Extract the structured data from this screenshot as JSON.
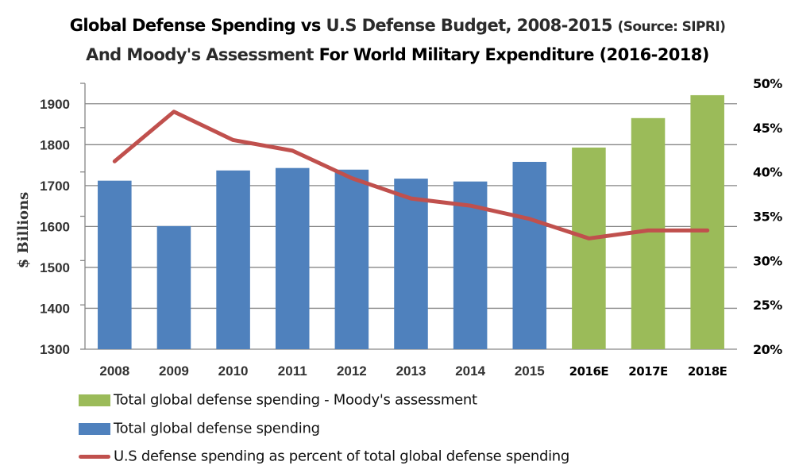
{
  "title": {
    "line1_part1": "Global Defense Spending vs",
    "line1_part2": "U.S Defense Budget, 2008-2015",
    "line1_part3": "(Source: SIPRI)",
    "line2_part1": "And Moody's Assessment",
    "line2_part2": "For World Military Expenditure (2016-2018)"
  },
  "colors": {
    "actual_bar": "#4F81BD",
    "forecast_bar": "#9BBB59",
    "line": "#C0504D",
    "grid": "#868686",
    "axis_text": "#333333"
  },
  "legend": [
    {
      "label": "Total global defense spending - Moody's assessment",
      "type": "box",
      "color": "#9BBB59"
    },
    {
      "label": "Total global defense spending",
      "type": "box",
      "color": "#4F81BD"
    },
    {
      "label": "U.S defense spending as percent of total global defense spending",
      "type": "line",
      "color": "#C0504D"
    }
  ],
  "chart_data": {
    "type": "bar",
    "title": "Global Defense Spending vs U.S Defense Budget, 2008-2015 (Source: SIPRI) And Moody's Assessment For World Military Expenditure (2016-2018)",
    "categories": [
      "2008",
      "2009",
      "2010",
      "2011",
      "2012",
      "2013",
      "2014",
      "2015",
      "2016E",
      "2017E",
      "2018E"
    ],
    "series": [
      {
        "name": "Total global defense spending",
        "type": "bar",
        "axis": "left",
        "color": "#4F81BD",
        "values": [
          1712,
          1601,
          1737,
          1743,
          1739,
          1717,
          1710,
          1758,
          null,
          null,
          null
        ]
      },
      {
        "name": "Total global defense spending - Moody's assessment",
        "type": "bar",
        "axis": "left",
        "color": "#9BBB59",
        "values": [
          null,
          null,
          null,
          null,
          null,
          null,
          null,
          null,
          1793,
          1865,
          1921
        ]
      },
      {
        "name": "U.S defense spending as percent of total global defense spending",
        "type": "line",
        "axis": "right",
        "color": "#C0504D",
        "unit": "%",
        "values": [
          41.2,
          46.8,
          43.6,
          42.4,
          39.3,
          37.0,
          36.2,
          34.7,
          32.5,
          33.4,
          33.4
        ]
      }
    ],
    "xlabel": "",
    "ylabel": "$ Billions",
    "ylim": [
      1300,
      1950
    ],
    "yticks": [
      "1300",
      "1400",
      "1500",
      "1600",
      "1700",
      "1800",
      "1900"
    ],
    "yticks_values": [
      1300,
      1400,
      1500,
      1600,
      1700,
      1800,
      1900
    ],
    "y2lim": [
      20,
      50
    ],
    "y2ticks": [
      "20%",
      "25%",
      "30%",
      "35%",
      "40%",
      "45%",
      "50%"
    ],
    "y2ticks_values": [
      20,
      25,
      30,
      35,
      40,
      45,
      50
    ],
    "grid": true,
    "legend_position": "bottom-left"
  }
}
